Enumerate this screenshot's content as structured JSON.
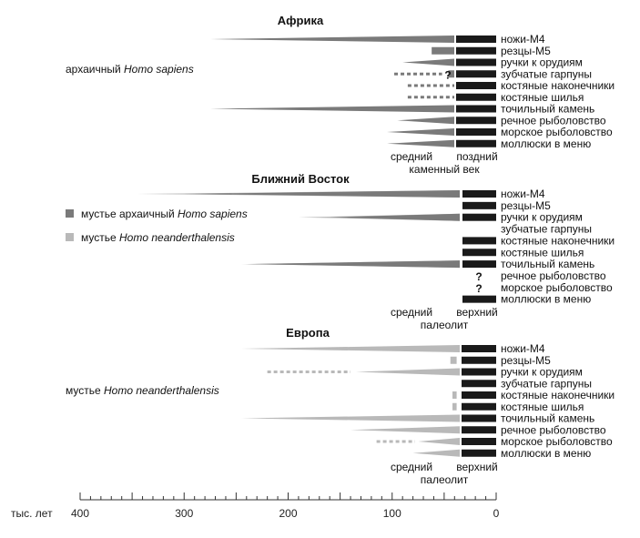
{
  "chart_data": {
    "type": "timeline",
    "axis": {
      "label": "тыс. лет",
      "min": 0,
      "max": 400,
      "reversed": true,
      "major_ticks": [
        400,
        300,
        200,
        100,
        0
      ],
      "minor_step": 10
    },
    "colors": {
      "black": "#1a1a1a",
      "dark": "#7a7a7a",
      "light": "#b9b9b9"
    },
    "regions": [
      {
        "key": "africa",
        "title": "Африка",
        "boundary": 40,
        "side_label_plain": "архаичный ",
        "side_label_italic": "Homo sapiens",
        "period_left": "средний",
        "period_right": "поздний",
        "period_bottom": "каменный век",
        "traits": [
          {
            "label": "ножи-М4",
            "black": true,
            "bars": [
              {
                "shade": "dark",
                "from": 40,
                "to": 275,
                "shape": "taper"
              }
            ]
          },
          {
            "label": "резцы-М5",
            "black": true,
            "bars": [
              {
                "shade": "dark",
                "from": 40,
                "to": 62,
                "shape": "rect"
              }
            ]
          },
          {
            "label": "ручки к орудиям",
            "black": true,
            "bars": [
              {
                "shade": "dark",
                "from": 40,
                "to": 90,
                "shape": "taper"
              }
            ]
          },
          {
            "label": "зубчатые гарпуны",
            "black": true,
            "question": "?",
            "bars": [
              {
                "shade": "dark",
                "from": 52,
                "to": 98,
                "shape": "dotted"
              },
              {
                "shade": "dark",
                "from": 40,
                "to": 46,
                "shape": "rect"
              }
            ]
          },
          {
            "label": "костяные наконечники",
            "black": true,
            "bars": [
              {
                "shade": "dark",
                "from": 40,
                "to": 85,
                "shape": "dotted"
              }
            ]
          },
          {
            "label": "костяные шилья",
            "black": true,
            "bars": [
              {
                "shade": "dark",
                "from": 40,
                "to": 85,
                "shape": "dotted"
              }
            ]
          },
          {
            "label": "точильный камень",
            "black": true,
            "bars": [
              {
                "shade": "dark",
                "from": 40,
                "to": 275,
                "shape": "taper"
              }
            ]
          },
          {
            "label": "речное рыболовство",
            "black": true,
            "bars": [
              {
                "shade": "dark",
                "from": 40,
                "to": 95,
                "shape": "taper"
              }
            ]
          },
          {
            "label": "морское рыболовство",
            "black": true,
            "bars": [
              {
                "shade": "dark",
                "from": 40,
                "to": 105,
                "shape": "taper"
              }
            ]
          },
          {
            "label": "моллюски в меню",
            "black": true,
            "bars": [
              {
                "shade": "dark",
                "from": 40,
                "to": 105,
                "shape": "taper"
              }
            ]
          }
        ]
      },
      {
        "key": "neareast",
        "title": "Ближний Восток",
        "boundary": 35,
        "period_left": "средний",
        "period_right": "верхний",
        "period_bottom": "палеолит",
        "traits": [
          {
            "label": "ножи-М4",
            "black": true,
            "bars": [
              {
                "shade": "light",
                "from": 35,
                "to": 345,
                "shape": "taper"
              },
              {
                "shade": "dark",
                "from": 35,
                "to": 300,
                "shape": "taper"
              }
            ]
          },
          {
            "label": "резцы-М5",
            "black": true,
            "bars": []
          },
          {
            "label": "ручки к орудиям",
            "black": true,
            "bars": [
              {
                "shade": "light",
                "from": 35,
                "to": 190,
                "shape": "taper"
              },
              {
                "shade": "dark",
                "from": 35,
                "to": 160,
                "shape": "taper"
              }
            ]
          },
          {
            "label": "зубчатые гарпуны",
            "black": false,
            "bars": []
          },
          {
            "label": "костяные наконечники",
            "black": true,
            "bars": []
          },
          {
            "label": "костяные шилья",
            "black": true,
            "bars": []
          },
          {
            "label": "точильный камень",
            "black": true,
            "bars": [
              {
                "shade": "light",
                "from": 35,
                "to": 245,
                "shape": "taper"
              },
              {
                "shade": "dark",
                "from": 35,
                "to": 240,
                "shape": "taper"
              }
            ]
          },
          {
            "label": "речное рыболовство",
            "black": false,
            "question": "?",
            "bars": []
          },
          {
            "label": "морское рыболовство",
            "black": false,
            "question": "?",
            "bars": []
          },
          {
            "label": "моллюски в меню",
            "black": true,
            "bars": []
          }
        ]
      },
      {
        "key": "europe",
        "title": "Европа",
        "boundary": 35,
        "side_label_plain": "мустье ",
        "side_label_italic": "Homo neanderthalensis",
        "period_left": "средний",
        "period_right": "верхний",
        "period_bottom": "палеолит",
        "traits": [
          {
            "label": "ножи-М4",
            "black": true,
            "bars": [
              {
                "shade": "light",
                "from": 35,
                "to": 245,
                "shape": "taper"
              }
            ]
          },
          {
            "label": "резцы-М5",
            "black": true,
            "bars": [
              {
                "shade": "light",
                "from": 38,
                "to": 44,
                "shape": "rect"
              }
            ]
          },
          {
            "label": "ручки к орудиям",
            "black": true,
            "bars": [
              {
                "shade": "light",
                "from": 35,
                "to": 135,
                "shape": "taper"
              },
              {
                "shade": "light",
                "from": 140,
                "to": 220,
                "shape": "dotted"
              }
            ]
          },
          {
            "label": "зубчатые гарпуны",
            "black": true,
            "bars": []
          },
          {
            "label": "костяные наконечники",
            "black": true,
            "bars": [
              {
                "shade": "light",
                "from": 38,
                "to": 42,
                "shape": "rect"
              }
            ]
          },
          {
            "label": "костяные шилья",
            "black": true,
            "bars": [
              {
                "shade": "light",
                "from": 38,
                "to": 42,
                "shape": "rect"
              }
            ]
          },
          {
            "label": "точильный камень",
            "black": true,
            "bars": [
              {
                "shade": "light",
                "from": 35,
                "to": 245,
                "shape": "taper"
              }
            ]
          },
          {
            "label": "речное рыболовство",
            "black": true,
            "bars": [
              {
                "shade": "light",
                "from": 35,
                "to": 140,
                "shape": "taper"
              }
            ]
          },
          {
            "label": "морское рыболовство",
            "black": true,
            "bars": [
              {
                "shade": "light",
                "from": 35,
                "to": 75,
                "shape": "taper"
              },
              {
                "shade": "light",
                "from": 78,
                "to": 115,
                "shape": "dotted"
              }
            ]
          },
          {
            "label": "моллюски в меню",
            "black": true,
            "bars": [
              {
                "shade": "light",
                "from": 35,
                "to": 80,
                "shape": "taper"
              }
            ]
          }
        ]
      }
    ],
    "legend": [
      {
        "shade": "dark",
        "plain": "мустье  архаичный ",
        "italic": "Homo sapiens"
      },
      {
        "shade": "light",
        "plain": "мустье  ",
        "italic": "Homo neanderthalensis"
      }
    ]
  }
}
